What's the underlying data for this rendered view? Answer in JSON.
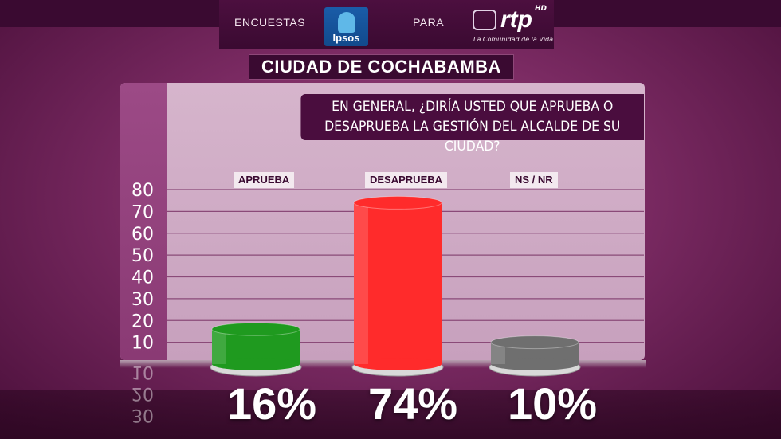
{
  "header": {
    "encuestas": "ENCUESTAS",
    "ipsos": "Ipsos",
    "para": "PARA",
    "rtp": "rtp",
    "rtp_hd": "HD",
    "rtp_tagline": "La Comunidad de la Vida"
  },
  "city": "CIUDAD DE COCHABAMBA",
  "question_line1": "EN GENERAL, ¿DIRÍA USTED QUE APRUEBA O",
  "question_line2": "DESAPRUEBA LA GESTIÓN DEL ALCALDE DE SU CIUDAD?",
  "colors": {
    "aprueba": "#1f9a1f",
    "desaprueba": "#ff2b2b",
    "nsnr": "#6f6f6f",
    "accent": "#4a0d3e"
  },
  "chart_data": {
    "type": "bar",
    "categories": [
      "APRUEBA",
      "DESAPRUEBA",
      "NS / NR"
    ],
    "values": [
      16,
      74,
      10
    ],
    "data_labels": [
      "16%",
      "74%",
      "10%"
    ],
    "ylim": [
      0,
      80
    ],
    "yticks": [
      10,
      20,
      30,
      40,
      50,
      60,
      70,
      80
    ],
    "grid": true
  }
}
